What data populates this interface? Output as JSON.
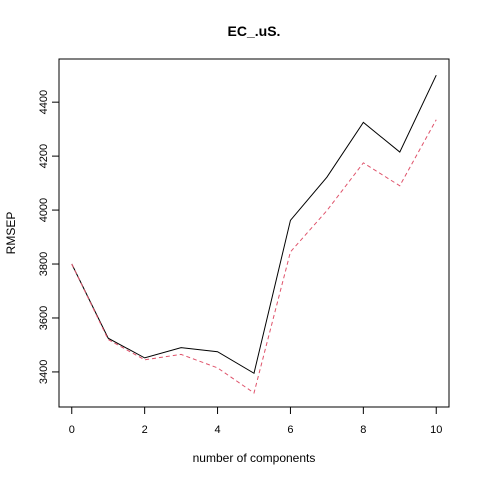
{
  "chart_data": {
    "type": "line",
    "title": "EC_.uS.",
    "xlabel": "number of components",
    "ylabel": "RMSEP",
    "xlim": [
      -0.35,
      10.35
    ],
    "ylim": [
      3270,
      4560
    ],
    "x_ticks": [
      0,
      2,
      4,
      6,
      8,
      10
    ],
    "y_ticks": [
      3400,
      3600,
      3800,
      4000,
      4200,
      4400
    ],
    "grid": false,
    "x": [
      0,
      1,
      2,
      3,
      4,
      5,
      6,
      7,
      8,
      9,
      10
    ],
    "series": [
      {
        "values": [
          3800,
          3525,
          3452,
          3490,
          3475,
          3395,
          3962,
          4122,
          4325,
          4215,
          4500
        ],
        "color": "#000000",
        "dash": "solid"
      },
      {
        "values": [
          3800,
          3520,
          3445,
          3465,
          3415,
          3322,
          3845,
          3998,
          4175,
          4090,
          4335
        ],
        "color": "#DF536B",
        "dash": "dashed"
      }
    ]
  }
}
